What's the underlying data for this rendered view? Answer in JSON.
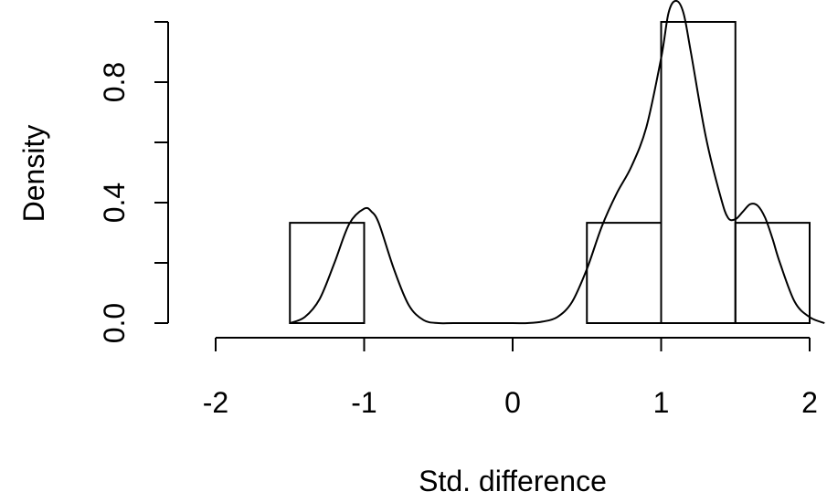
{
  "chart_data": {
    "type": "histogram",
    "title": "",
    "xlabel": "Std. difference",
    "ylabel": "Density",
    "xlim": [
      -2,
      2.1
    ],
    "ylim": [
      0,
      1.0
    ],
    "xticks": [
      -2,
      -1,
      0,
      1,
      2
    ],
    "xtick_labels": [
      "-2",
      "-1",
      "0",
      "1",
      "2"
    ],
    "yticks": [
      0.0,
      0.4,
      0.8
    ],
    "ytick_labels": [
      "0.0",
      "0.4",
      "0.8"
    ],
    "grid": false,
    "bins": [
      {
        "x0": -1.5,
        "x1": -1.0,
        "density": 0.333
      },
      {
        "x0": 0.5,
        "x1": 1.0,
        "density": 0.333
      },
      {
        "x0": 1.0,
        "x1": 1.5,
        "density": 1.0
      },
      {
        "x0": 1.5,
        "x1": 2.0,
        "density": 0.333
      }
    ],
    "density_curve": {
      "x": [
        -1.5,
        -1.4,
        -1.3,
        -1.2,
        -1.1,
        -1.0,
        -0.95,
        -0.9,
        -0.8,
        -0.7,
        -0.6,
        -0.5,
        -0.4,
        -0.2,
        0.0,
        0.1,
        0.2,
        0.3,
        0.4,
        0.5,
        0.6,
        0.7,
        0.8,
        0.9,
        1.0,
        1.05,
        1.1,
        1.15,
        1.2,
        1.3,
        1.4,
        1.45,
        1.5,
        1.55,
        1.6,
        1.65,
        1.7,
        1.75,
        1.8,
        1.9,
        2.0,
        2.1
      ],
      "y": [
        0.0,
        0.02,
        0.08,
        0.2,
        0.33,
        0.38,
        0.37,
        0.33,
        0.18,
        0.06,
        0.01,
        0.0,
        0.0,
        0.0,
        0.0,
        0.0,
        0.005,
        0.02,
        0.07,
        0.18,
        0.32,
        0.43,
        0.52,
        0.65,
        0.88,
        1.03,
        1.07,
        1.03,
        0.9,
        0.62,
        0.42,
        0.35,
        0.345,
        0.37,
        0.395,
        0.39,
        0.35,
        0.28,
        0.2,
        0.07,
        0.02,
        0.0
      ]
    }
  }
}
